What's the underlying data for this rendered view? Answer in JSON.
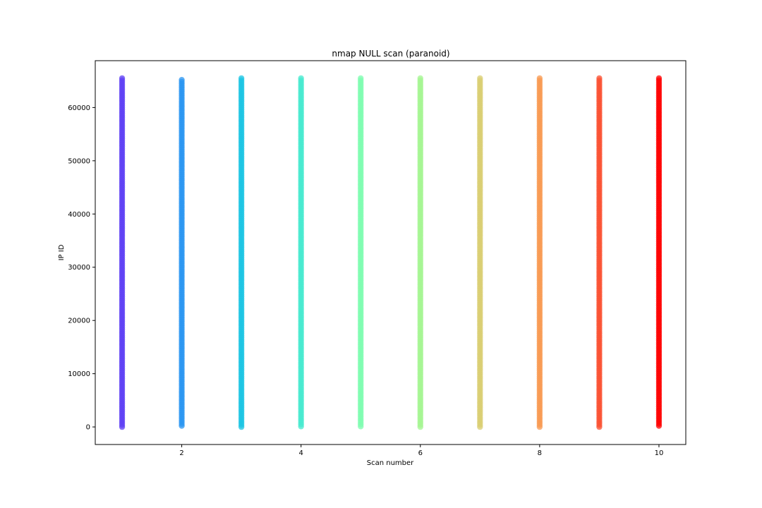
{
  "chart_data": {
    "type": "scatter",
    "title": "nmap NULL scan (paranoid)",
    "xlabel": "Scan number",
    "ylabel": "IP ID",
    "xlim": [
      0.55,
      10.45
    ],
    "ylim": [
      -3300,
      68800
    ],
    "xticks": [
      2,
      4,
      6,
      8,
      10
    ],
    "yticks": [
      0,
      10000,
      20000,
      30000,
      40000,
      50000,
      60000
    ],
    "grid": false,
    "legend": "none",
    "series": [
      {
        "x": 1,
        "y_min": 0,
        "y_max": 65500,
        "color": "#5d3ff4"
      },
      {
        "x": 2,
        "y_min": 200,
        "y_max": 65200,
        "color": "#2a96f1"
      },
      {
        "x": 3,
        "y_min": 0,
        "y_max": 65500,
        "color": "#1ac4e3"
      },
      {
        "x": 4,
        "y_min": 100,
        "y_max": 65500,
        "color": "#45e9cf"
      },
      {
        "x": 5,
        "y_min": 100,
        "y_max": 65500,
        "color": "#7dfcb0"
      },
      {
        "x": 6,
        "y_min": 0,
        "y_max": 65500,
        "color": "#a4f591"
      },
      {
        "x": 7,
        "y_min": 0,
        "y_max": 65500,
        "color": "#dace72"
      },
      {
        "x": 8,
        "y_min": 0,
        "y_max": 65500,
        "color": "#f89a52"
      },
      {
        "x": 9,
        "y_min": 0,
        "y_max": 65500,
        "color": "#fb5032"
      },
      {
        "x": 10,
        "y_min": 200,
        "y_max": 65500,
        "color": "#ff0000"
      }
    ]
  }
}
